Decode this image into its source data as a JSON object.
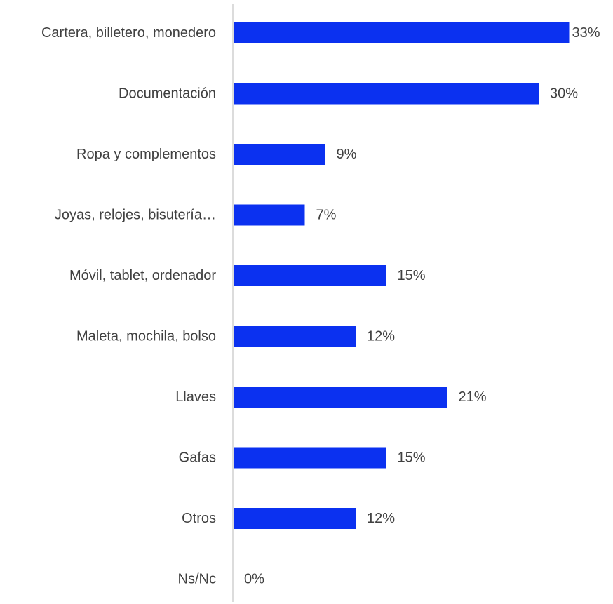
{
  "chart_data": {
    "type": "bar",
    "orientation": "horizontal",
    "title": "",
    "xlabel": "",
    "ylabel": "",
    "categories": [
      "Cartera, billetero, monedero",
      "Documentación",
      "Ropa y complementos",
      "Joyas, relojes, bisutería…",
      "Móvil, tablet, ordenador",
      "Maleta, mochila, bolso",
      "Llaves",
      "Gafas",
      "Otros",
      "Ns/Nc"
    ],
    "values": [
      33,
      30,
      9,
      7,
      15,
      12,
      21,
      15,
      12,
      0
    ],
    "value_labels": [
      "33%",
      "30%",
      "9%",
      "7%",
      "15%",
      "12%",
      "21%",
      "15%",
      "12%",
      "0%"
    ],
    "unit": "%",
    "xlim": [
      0,
      35
    ],
    "grid": false,
    "legend": "none",
    "bar_color": "#0b31f0"
  }
}
